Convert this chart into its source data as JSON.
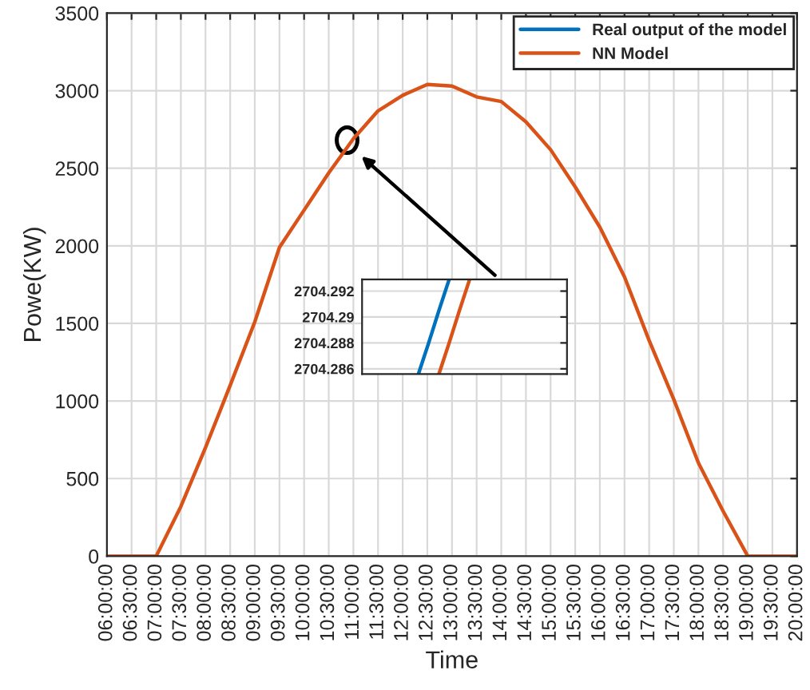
{
  "chart_data": [
    {
      "type": "line",
      "xlabel": "Time",
      "ylabel": "Powe(KW)",
      "x": [
        6,
        6.5,
        7,
        7.5,
        8,
        8.5,
        9,
        9.5,
        10,
        10.5,
        11,
        11.5,
        12,
        12.5,
        13,
        13.5,
        14,
        14.5,
        15,
        15.5,
        16,
        16.5,
        17,
        17.5,
        18,
        18.5,
        19,
        19.5,
        20
      ],
      "series": [
        {
          "name": "Real output of the model",
          "color": "#0072bd",
          "values": [
            null,
            null,
            null,
            null,
            null,
            null,
            null,
            null,
            null,
            null,
            null,
            null,
            null,
            null,
            null,
            null,
            null,
            null,
            null,
            null,
            null,
            null,
            null,
            null,
            null,
            null,
            null,
            null,
            null
          ]
        },
        {
          "name": "NN Model",
          "color": "#d95319",
          "values": [
            0,
            0,
            0,
            320,
            700,
            1100,
            1510,
            1990,
            2230,
            2470,
            2690,
            2870,
            2970,
            3040,
            3030,
            2960,
            2930,
            2800,
            2620,
            2380,
            2120,
            1800,
            1390,
            1010,
            600,
            290,
            0,
            0,
            0
          ]
        }
      ],
      "xlim": [
        6,
        20
      ],
      "xticks": [
        {
          "value": 6,
          "label": "06:00:00"
        },
        {
          "value": 6.5,
          "label": "06:30:00"
        },
        {
          "value": 7,
          "label": "07:00:00"
        },
        {
          "value": 7.5,
          "label": "07:30:00"
        },
        {
          "value": 8,
          "label": "08:00:00"
        },
        {
          "value": 8.5,
          "label": "08:30:00"
        },
        {
          "value": 9,
          "label": "09:00:00"
        },
        {
          "value": 9.5,
          "label": "09:30:00"
        },
        {
          "value": 10,
          "label": "10:00:00"
        },
        {
          "value": 10.5,
          "label": "10:30:00"
        },
        {
          "value": 11,
          "label": "11:00:00"
        },
        {
          "value": 11.5,
          "label": "11:30:00"
        },
        {
          "value": 12,
          "label": "12:00:00"
        },
        {
          "value": 12.5,
          "label": "12:30:00"
        },
        {
          "value": 13,
          "label": "13:00:00"
        },
        {
          "value": 13.5,
          "label": "13:30:00"
        },
        {
          "value": 14,
          "label": "14:00:00"
        },
        {
          "value": 14.5,
          "label": "14:30:00"
        },
        {
          "value": 15,
          "label": "15:00:00"
        },
        {
          "value": 15.5,
          "label": "15:30:00"
        },
        {
          "value": 16,
          "label": "16:00:00"
        },
        {
          "value": 16.5,
          "label": "16:30:00"
        },
        {
          "value": 17,
          "label": "17:00:00"
        },
        {
          "value": 17.5,
          "label": "17:30:00"
        },
        {
          "value": 18,
          "label": "18:00:00"
        },
        {
          "value": 18.5,
          "label": "18:30:00"
        },
        {
          "value": 19,
          "label": "19:00:00"
        },
        {
          "value": 19.5,
          "label": "19:30:00"
        },
        {
          "value": 20,
          "label": "20:00:00"
        }
      ],
      "ylim": [
        0,
        3500
      ],
      "yticks": [
        0,
        500,
        1000,
        1500,
        2000,
        2500,
        3000,
        3500
      ],
      "grid": true,
      "legend": "top right"
    },
    {
      "type": "line",
      "tick_labels": "y",
      "categories": [
        null,
        null,
        null,
        null,
        null,
        null,
        null,
        null,
        null,
        null,
        null,
        null,
        null,
        null,
        null,
        null,
        null,
        null,
        null,
        null
      ],
      "series": [
        {
          "color": "#0072bd",
          "values": [
            null,
            null,
            null,
            null,
            null,
            2704.2856,
            2704.288,
            2704.2905,
            2704.2929,
            null,
            null,
            null,
            null,
            null,
            null,
            null,
            null,
            null,
            null,
            null
          ]
        },
        {
          "color": "#d95319",
          "values": [
            null,
            null,
            null,
            null,
            null,
            null,
            null,
            2704.2856,
            2704.288,
            2704.2905,
            2704.2929,
            null,
            null,
            null,
            null,
            null,
            null,
            null,
            null,
            null
          ]
        }
      ],
      "ylim": [
        2704.2856,
        2704.2929
      ],
      "yticks": [
        2704.286,
        2704.288,
        2704.29,
        2704.292
      ],
      "grid": true
    }
  ]
}
